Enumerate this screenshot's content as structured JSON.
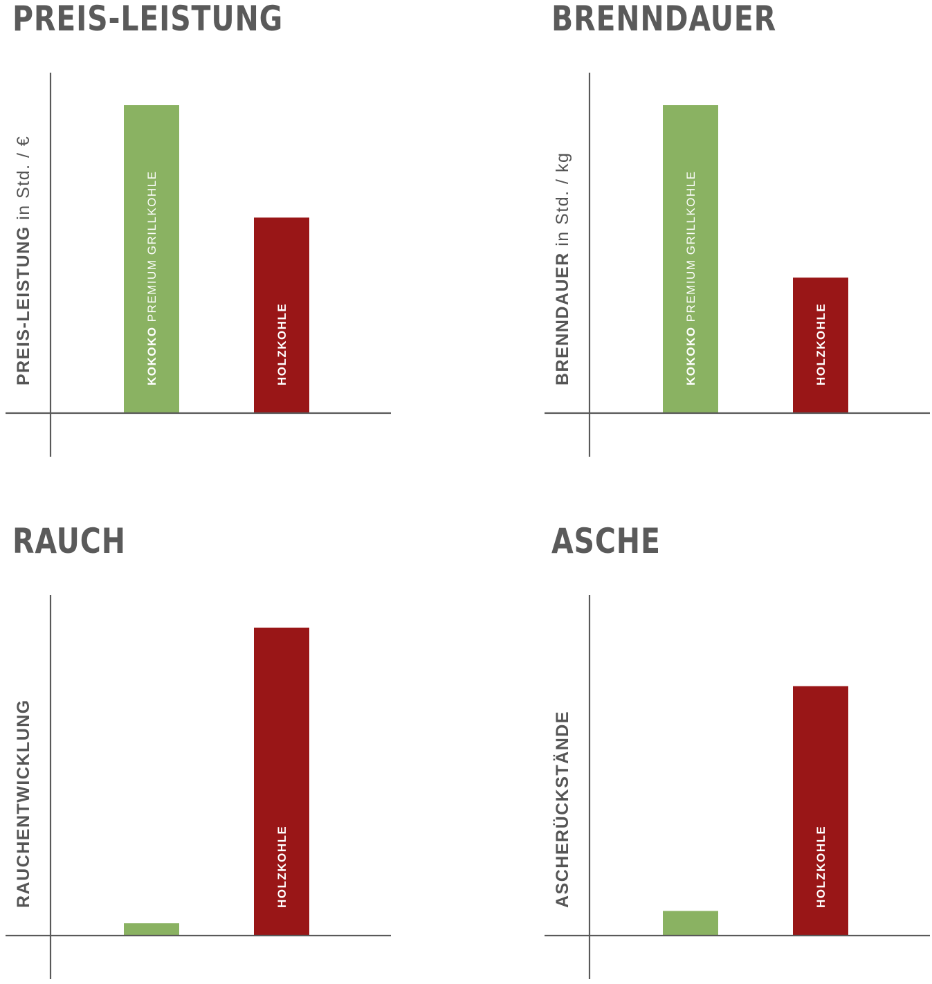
{
  "colors": {
    "green": "#8ab262",
    "red": "#991617",
    "axis": "#595959",
    "title": "#5a5a5a"
  },
  "chart_data": [
    {
      "type": "bar",
      "title": "PREIS-LEISTUNG",
      "ylabel": {
        "main": "PREIS-LEISTUNG",
        "unit": " in Std. / €"
      },
      "categories": [
        "KOKOKO PREMIUM GRILLKOHLE",
        "HOLZKOHLE"
      ],
      "values": [
        100,
        63.5
      ],
      "bar_labels": [
        {
          "bold": "KOKOKO",
          "light": " PREMIUM GRILLKOHLE"
        },
        {
          "bold": "HOLZKOHLE",
          "light": ""
        }
      ],
      "ylim": [
        0,
        110
      ],
      "grid": false
    },
    {
      "type": "bar",
      "title": "BRENNDAUER",
      "ylabel": {
        "main": "BRENNDAUER",
        "unit": " in Std. / kg"
      },
      "categories": [
        "KOKOKO PREMIUM GRILLKOHLE",
        "HOLZKOHLE"
      ],
      "values": [
        100,
        44
      ],
      "bar_labels": [
        {
          "bold": "KOKOKO",
          "light": " PREMIUM GRILLKOHLE"
        },
        {
          "bold": "HOLZKOHLE",
          "light": ""
        }
      ],
      "ylim": [
        0,
        110
      ],
      "grid": false
    },
    {
      "type": "bar",
      "title": "RAUCH",
      "ylabel": {
        "main": "RAUCHENTWICKLUNG",
        "unit": ""
      },
      "categories": [
        "KOKOKO PREMIUM GRILLKOHLE",
        "HOLZKOHLE"
      ],
      "values": [
        4,
        100
      ],
      "bar_labels": [
        {
          "bold": "",
          "light": ""
        },
        {
          "bold": "HOLZKOHLE",
          "light": ""
        }
      ],
      "ylim": [
        0,
        110
      ],
      "grid": false
    },
    {
      "type": "bar",
      "title": "ASCHE",
      "ylabel": {
        "main": "ASCHERÜCKSTÄNDE",
        "unit": ""
      },
      "categories": [
        "KOKOKO PREMIUM GRILLKOHLE",
        "HOLZKOHLE"
      ],
      "values": [
        8,
        81
      ],
      "bar_labels": [
        {
          "bold": "",
          "light": ""
        },
        {
          "bold": "HOLZKOHLE",
          "light": ""
        }
      ],
      "ylim": [
        0,
        110
      ],
      "grid": false
    }
  ]
}
